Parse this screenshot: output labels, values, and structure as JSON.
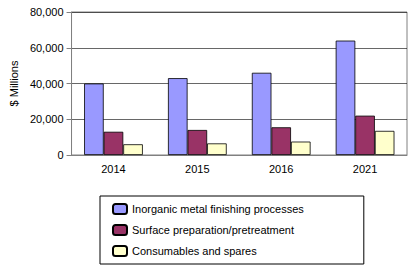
{
  "chart_data": {
    "type": "bar",
    "y_label": "$ Millions",
    "categories": [
      "2014",
      "2015",
      "2016",
      "2021"
    ],
    "series": [
      {
        "name": "Inorganic metal finishing processes",
        "color": "#9999ff",
        "values": [
          40000,
          43000,
          46000,
          64000
        ]
      },
      {
        "name": "Surface preparation/pretreatment",
        "color": "#993366",
        "values": [
          13000,
          14000,
          15500,
          22000
        ]
      },
      {
        "name": "Consumables and spares",
        "color": "#ffffcc",
        "values": [
          6000,
          6500,
          7500,
          13500
        ]
      }
    ],
    "ylim": [
      0,
      80000
    ],
    "yticks": [
      0,
      {
        "value": 20000,
        "label": "20,000"
      },
      {
        "value": 40000,
        "label": "40,000"
      },
      {
        "value": 60000,
        "label": "60,000"
      },
      {
        "value": 80000,
        "label": "80,000"
      }
    ],
    "grid": true,
    "legend": "bottom"
  }
}
